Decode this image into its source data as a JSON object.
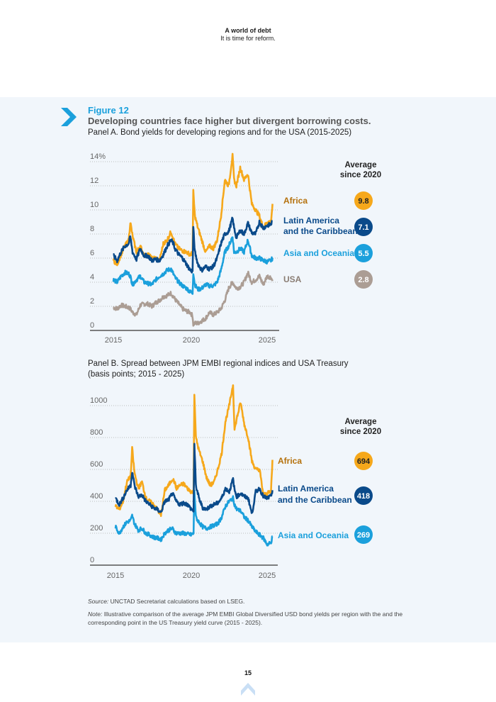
{
  "header": {
    "title": "A world of debt",
    "subtitle": "It is time for reform."
  },
  "figure": {
    "label": "Figure 12",
    "title": "Developing countries face higher but divergent borrowing costs.",
    "chevron_icon": "chevron-right-icon"
  },
  "colors": {
    "africa": "#f6a81b",
    "africa_label": "#b5710c",
    "latam": "#0a4a8a",
    "asia": "#1ba0dc",
    "usa": "#ab9d94",
    "usa_label": "#8a7d74",
    "grid": "#aaaaaa",
    "axis": "#555555"
  },
  "chart_data": [
    {
      "type": "line",
      "title": "Panel A. Bond yields for developing regions and for the USA (2015-2025)",
      "xlabel": "",
      "ylabel": "",
      "x_ticks": [
        "2015",
        "2020",
        "2025"
      ],
      "y_ticks": [
        "0",
        "2",
        "4",
        "6",
        "8",
        "10",
        "12",
        "14%"
      ],
      "y_tick_values": [
        0,
        2,
        4,
        6,
        8,
        10,
        12,
        14
      ],
      "ylim": [
        0,
        14
      ],
      "xlim": [
        2014.5,
        2025.7
      ],
      "grid": true,
      "legend_placement": "right",
      "average_header": "Average since 2020",
      "x": [
        2015.0,
        2015.25,
        2015.5,
        2015.75,
        2016.0,
        2016.1,
        2016.25,
        2016.5,
        2016.75,
        2017.0,
        2017.25,
        2017.5,
        2017.75,
        2018.0,
        2018.25,
        2018.5,
        2018.75,
        2018.9,
        2019.0,
        2019.25,
        2019.5,
        2019.75,
        2020.0,
        2020.15,
        2020.2,
        2020.3,
        2020.5,
        2020.75,
        2021.0,
        2021.25,
        2021.5,
        2021.75,
        2022.0,
        2022.25,
        2022.5,
        2022.75,
        2022.85,
        2023.0,
        2023.25,
        2023.5,
        2023.75,
        2024.0,
        2024.25,
        2024.5,
        2024.75,
        2025.0,
        2025.25,
        2025.35
      ],
      "series": [
        {
          "name": "Africa",
          "average": "9.8",
          "values": [
            5.8,
            5.5,
            6.3,
            7.0,
            7.5,
            9.0,
            7.8,
            6.5,
            7.0,
            6.2,
            6.3,
            6.0,
            6.0,
            5.8,
            7.2,
            7.5,
            8.2,
            7.6,
            7.2,
            6.8,
            6.6,
            6.5,
            6.3,
            6.4,
            11.5,
            9.5,
            8.5,
            7.5,
            6.5,
            7.0,
            6.8,
            7.5,
            9.5,
            12.5,
            12.0,
            14.5,
            12.5,
            12.0,
            13.5,
            12.5,
            13.0,
            10.5,
            10.0,
            9.5,
            8.5,
            9.0,
            9.0,
            10.5
          ]
        },
        {
          "name": "Latin America and the Caribbean",
          "average": "7.1",
          "values": [
            6.2,
            5.8,
            6.5,
            7.0,
            7.2,
            7.8,
            6.5,
            5.9,
            6.8,
            6.2,
            6.2,
            5.8,
            5.9,
            5.8,
            6.3,
            7.0,
            7.5,
            7.2,
            6.8,
            6.3,
            6.0,
            5.5,
            5.0,
            4.9,
            8.5,
            6.5,
            5.5,
            5.0,
            5.3,
            5.1,
            5.3,
            6.0,
            7.2,
            8.0,
            8.2,
            9.3,
            8.5,
            7.7,
            8.3,
            8.0,
            8.9,
            8.1,
            8.0,
            9.0,
            8.5,
            8.7,
            8.8,
            9.1
          ]
        },
        {
          "name": "Asia and Oceania",
          "average": "5.5",
          "values": [
            4.2,
            4.0,
            4.5,
            4.8,
            4.7,
            4.5,
            3.8,
            4.2,
            4.5,
            4.0,
            3.9,
            3.8,
            4.2,
            4.5,
            4.7,
            5.0,
            5.1,
            4.7,
            4.4,
            4.0,
            3.7,
            3.5,
            3.2,
            3.1,
            4.8,
            3.8,
            3.4,
            3.5,
            3.8,
            3.7,
            3.7,
            4.0,
            5.0,
            6.5,
            7.0,
            7.8,
            6.5,
            6.5,
            6.8,
            6.5,
            7.5,
            6.2,
            6.0,
            6.0,
            5.8,
            5.7,
            5.8,
            6.0
          ]
        },
        {
          "name": "USA",
          "average": "2.8",
          "values": [
            1.9,
            1.8,
            2.1,
            2.0,
            1.9,
            1.8,
            1.5,
            1.3,
            2.1,
            2.2,
            2.2,
            2.0,
            2.3,
            2.5,
            2.8,
            2.9,
            3.1,
            2.8,
            2.6,
            2.2,
            1.8,
            1.6,
            1.5,
            1.2,
            0.5,
            0.6,
            0.6,
            0.8,
            1.0,
            1.5,
            1.3,
            1.5,
            1.8,
            2.5,
            3.5,
            4.0,
            3.8,
            3.5,
            3.6,
            4.0,
            4.8,
            4.0,
            4.2,
            4.5,
            3.8,
            4.5,
            4.4,
            4.1
          ]
        }
      ]
    },
    {
      "type": "line",
      "title": "Panel B. Spread between JPM EMBI regional indices and USA Treasury (basis points; 2015 - 2025)",
      "xlabel": "",
      "ylabel": "",
      "x_ticks": [
        "2015",
        "2020",
        "2025"
      ],
      "y_ticks": [
        "0",
        "200",
        "400",
        "600",
        "800",
        "1000"
      ],
      "y_tick_values": [
        0,
        200,
        400,
        600,
        800,
        1000
      ],
      "ylim": [
        0,
        1000
      ],
      "xlim": [
        2014.5,
        2025.7
      ],
      "grid": true,
      "legend_placement": "right",
      "average_header": "Average since 2020",
      "x": [
        2015.0,
        2015.25,
        2015.5,
        2015.75,
        2016.0,
        2016.1,
        2016.25,
        2016.5,
        2016.75,
        2017.0,
        2017.25,
        2017.5,
        2017.75,
        2018.0,
        2018.25,
        2018.5,
        2018.75,
        2018.9,
        2019.0,
        2019.25,
        2019.5,
        2019.75,
        2020.0,
        2020.15,
        2020.2,
        2020.3,
        2020.5,
        2020.75,
        2021.0,
        2021.25,
        2021.5,
        2021.75,
        2022.0,
        2022.25,
        2022.5,
        2022.75,
        2022.85,
        2023.0,
        2023.25,
        2023.5,
        2023.75,
        2024.0,
        2024.25,
        2024.5,
        2024.75,
        2025.0,
        2025.25,
        2025.35
      ],
      "series": [
        {
          "name": "Africa",
          "average": "694",
          "values": [
            370,
            350,
            400,
            520,
            560,
            730,
            580,
            480,
            520,
            420,
            400,
            380,
            350,
            310,
            470,
            500,
            540,
            520,
            480,
            500,
            510,
            480,
            460,
            460,
            1080,
            800,
            720,
            650,
            550,
            500,
            520,
            600,
            700,
            900,
            1000,
            1130,
            850,
            920,
            1020,
            880,
            800,
            650,
            600,
            600,
            440,
            450,
            460,
            660
          ]
        },
        {
          "name": "Latin America and the Caribbean",
          "average": "418",
          "values": [
            420,
            380,
            420,
            470,
            500,
            590,
            500,
            430,
            440,
            400,
            380,
            360,
            350,
            330,
            400,
            410,
            450,
            420,
            400,
            380,
            390,
            380,
            350,
            340,
            760,
            500,
            420,
            360,
            350,
            370,
            380,
            390,
            420,
            480,
            460,
            540,
            470,
            430,
            450,
            430,
            420,
            320,
            460,
            480,
            430,
            420,
            430,
            470
          ]
        },
        {
          "name": "Asia and Oceania",
          "average": "269",
          "values": [
            240,
            200,
            240,
            270,
            280,
            310,
            260,
            220,
            230,
            200,
            190,
            175,
            170,
            160,
            200,
            220,
            230,
            210,
            200,
            200,
            200,
            195,
            190,
            200,
            470,
            300,
            270,
            240,
            230,
            240,
            250,
            260,
            300,
            370,
            400,
            420,
            380,
            350,
            340,
            300,
            280,
            240,
            210,
            190,
            170,
            130,
            140,
            180
          ]
        }
      ]
    }
  ],
  "legend": {
    "africa": "Africa",
    "latam_line1": "Latin America",
    "latam_line2": "and the Caribbean",
    "asia": "Asia and Oceania",
    "usa": "USA",
    "avg_line1": "Average",
    "avg_line2": "since 2020"
  },
  "panel_a": {
    "title": "Panel A. Bond yields for developing regions and for the USA (2015-2025)"
  },
  "panel_b": {
    "title_line1": "Panel B. Spread between JPM EMBI regional indices and USA Treasury",
    "title_line2": "(basis points; 2015 - 2025)"
  },
  "footnotes": {
    "source_label": "Source:",
    "source_text": " UNCTAD Secretariat calculations based on LSEG.",
    "note_label": "Note:",
    "note_text": " Illustrative comparison of the average JPM EMBI Global Diversified USD bond yields per region with the and the corresponding point in the US Treasury yield curve (2015 - 2025)."
  },
  "footer": {
    "page_number": "15",
    "up_icon": "back-to-top-icon"
  }
}
